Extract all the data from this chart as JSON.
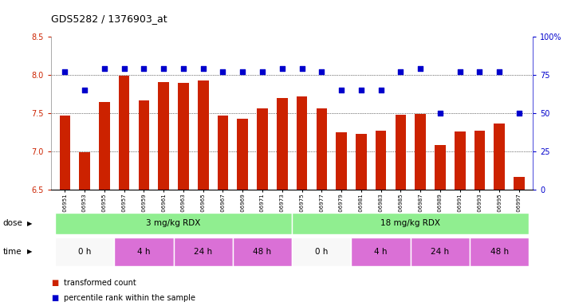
{
  "title": "GDS5282 / 1376903_at",
  "samples": [
    "GSM306951",
    "GSM306953",
    "GSM306955",
    "GSM306957",
    "GSM306959",
    "GSM306961",
    "GSM306963",
    "GSM306965",
    "GSM306967",
    "GSM306969",
    "GSM306971",
    "GSM306973",
    "GSM306975",
    "GSM306977",
    "GSM306979",
    "GSM306981",
    "GSM306983",
    "GSM306985",
    "GSM306987",
    "GSM306989",
    "GSM306991",
    "GSM306993",
    "GSM306995",
    "GSM306997"
  ],
  "bar_values": [
    7.47,
    6.99,
    7.65,
    7.99,
    7.67,
    7.91,
    7.9,
    7.93,
    7.47,
    7.43,
    7.56,
    7.7,
    7.72,
    7.56,
    7.25,
    7.23,
    7.27,
    7.48,
    7.49,
    7.08,
    7.26,
    7.27,
    7.37,
    6.67
  ],
  "dot_values": [
    77,
    65,
    79,
    79,
    79,
    79,
    79,
    79,
    77,
    77,
    77,
    79,
    79,
    77,
    65,
    65,
    65,
    77,
    79,
    50,
    77,
    77,
    77,
    50
  ],
  "ylim_left": [
    6.5,
    8.5
  ],
  "ylim_right": [
    0,
    100
  ],
  "bar_color": "#cc2200",
  "dot_color": "#0000cc",
  "baseline": 6.5,
  "yticks_left": [
    6.5,
    7.0,
    7.5,
    8.0,
    8.5
  ],
  "yticks_right": [
    0,
    25,
    50,
    75,
    100
  ],
  "ytick_labels_right": [
    "0",
    "25",
    "50",
    "75",
    "100%"
  ],
  "dose_color": "#90ee90",
  "dose_groups": [
    {
      "label": "3 mg/kg RDX",
      "start": 0,
      "end": 11
    },
    {
      "label": "18 mg/kg RDX",
      "start": 12,
      "end": 23
    }
  ],
  "time_groups": [
    {
      "label": "0 h",
      "start": 0,
      "end": 2,
      "color": "#f8f8f8"
    },
    {
      "label": "4 h",
      "start": 3,
      "end": 5,
      "color": "#da70d6"
    },
    {
      "label": "24 h",
      "start": 6,
      "end": 8,
      "color": "#da70d6"
    },
    {
      "label": "48 h",
      "start": 9,
      "end": 11,
      "color": "#da70d6"
    },
    {
      "label": "0 h",
      "start": 12,
      "end": 14,
      "color": "#f8f8f8"
    },
    {
      "label": "4 h",
      "start": 15,
      "end": 17,
      "color": "#da70d6"
    },
    {
      "label": "24 h",
      "start": 18,
      "end": 20,
      "color": "#da70d6"
    },
    {
      "label": "48 h",
      "start": 21,
      "end": 23,
      "color": "#da70d6"
    }
  ],
  "legend_items": [
    {
      "color": "#cc2200",
      "label": "transformed count"
    },
    {
      "color": "#0000cc",
      "label": "percentile rank within the sample"
    }
  ]
}
